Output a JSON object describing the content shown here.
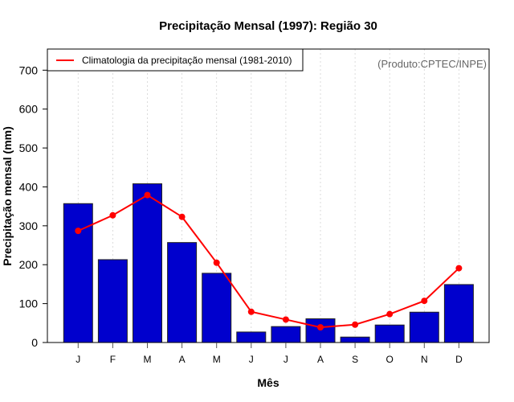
{
  "chart_data": {
    "type": "bar",
    "title": "Precipitação Mensal (1997): Região 30",
    "xlabel": "Mês",
    "ylabel": "Precipitação mensal (mm)",
    "ylim": [
      0,
      760
    ],
    "yticks": [
      0,
      100,
      200,
      300,
      400,
      500,
      600,
      700
    ],
    "grid": "vertical dotted",
    "categories": [
      "J",
      "F",
      "M",
      "A",
      "M",
      "J",
      "J",
      "A",
      "S",
      "O",
      "N",
      "D"
    ],
    "series": [
      {
        "name": "Precipitação mensal 1997",
        "type": "bar",
        "color": "#0000CD",
        "values": [
          357,
          213,
          408,
          257,
          178,
          27,
          41,
          61,
          14,
          45,
          78,
          149
        ]
      },
      {
        "name": "Climatologia da precipitação mensal (1981-2010)",
        "type": "line",
        "color": "#FF0000",
        "values": [
          287,
          327,
          379,
          323,
          205,
          79,
          59,
          39,
          46,
          73,
          107,
          191
        ]
      }
    ],
    "legend": {
      "position": "top-left",
      "entries": [
        "Climatologia da precipitação mensal (1981-2010)"
      ]
    },
    "annotation": "(Produto:CPTEC/INPE)"
  }
}
